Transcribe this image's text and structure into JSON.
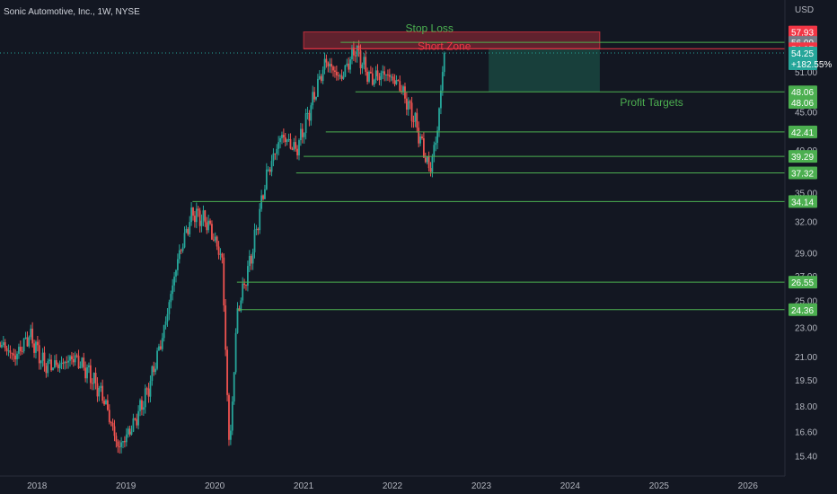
{
  "header": {
    "title": "Sonic Automotive, Inc., 1W, NYSE",
    "currency": "USD"
  },
  "colors": {
    "background": "#131722",
    "up_candle": "#26a69a",
    "down_candle": "#ef5350",
    "level_line": "#4caf50",
    "level_tag": "#4caf50",
    "stop_tag": "#f23645",
    "short_zone_fill": "#f23645",
    "profit_zone_fill": "#1b4d44",
    "last_price_tag": "#26a69a",
    "gray_tag": "#787b86",
    "annotation_green": "#4caf50",
    "annotation_red": "#f23645"
  },
  "chart_data": {
    "type": "candlestick",
    "title": "Sonic Automotive, Inc., 1W, NYSE",
    "y_unit": "USD",
    "y_scale": "log",
    "ylim": [
      14.5,
      64
    ],
    "xlim": [
      "2017-08",
      "2026-06"
    ],
    "x_ticks": [
      "2018",
      "2019",
      "2020",
      "2021",
      "2022",
      "2023",
      "2024",
      "2025",
      "2026"
    ],
    "y_ticks": [
      15.4,
      16.6,
      18.0,
      19.5,
      21.0,
      23.0,
      25.0,
      27.0,
      29.0,
      32.0,
      35.0,
      40.0,
      45.0,
      51.0
    ],
    "price_path": [
      [
        "2017-08",
        22.0
      ],
      [
        "2017-10",
        21.0
      ],
      [
        "2017-12",
        22.5
      ],
      [
        "2018-02",
        20.5
      ],
      [
        "2018-04",
        20.5
      ],
      [
        "2018-06",
        21.0
      ],
      [
        "2018-08",
        20.0
      ],
      [
        "2018-10",
        18.5
      ],
      [
        "2018-12",
        15.8
      ],
      [
        "2019-02",
        17.0
      ],
      [
        "2019-04",
        19.0
      ],
      [
        "2019-06",
        22.5
      ],
      [
        "2019-08",
        28.5
      ],
      [
        "2019-10",
        33.0
      ],
      [
        "2019-12",
        32.0
      ],
      [
        "2020-02",
        28.5
      ],
      [
        "2020-03",
        15.5
      ],
      [
        "2020-04",
        24.0
      ],
      [
        "2020-06",
        29.0
      ],
      [
        "2020-08",
        37.0
      ],
      [
        "2020-10",
        42.0
      ],
      [
        "2020-12",
        40.0
      ],
      [
        "2021-02",
        46.0
      ],
      [
        "2021-04",
        53.0
      ],
      [
        "2021-06",
        50.0
      ],
      [
        "2021-08",
        55.0
      ],
      [
        "2021-10",
        50.0
      ],
      [
        "2021-12",
        51.0
      ],
      [
        "2022-02",
        49.0
      ],
      [
        "2022-04",
        44.0
      ],
      [
        "2022-06",
        37.5
      ],
      [
        "2022-07",
        42.0
      ],
      [
        "2022-08",
        54.25
      ]
    ],
    "levels": [
      {
        "price": 56.09,
        "label": "56.09",
        "role": "stop"
      },
      {
        "price": 48.06,
        "label": "48.06",
        "role": "target"
      },
      {
        "price": 42.41,
        "label": "42.41",
        "role": "target"
      },
      {
        "price": 39.29,
        "label": "39.29",
        "role": "target"
      },
      {
        "price": 37.32,
        "label": "37.32",
        "role": "target"
      },
      {
        "price": 34.14,
        "label": "34.14",
        "role": "target"
      },
      {
        "price": 26.55,
        "label": "26.55",
        "role": "target"
      },
      {
        "price": 24.36,
        "label": "24.36",
        "role": "target"
      }
    ],
    "price_tags": [
      {
        "price": 57.93,
        "label": "57.93",
        "kind": "stop"
      },
      {
        "price": 56.09,
        "label": "56.09",
        "kind": "gray"
      },
      {
        "price": 54.97,
        "label": "54.97",
        "kind": "stop"
      },
      {
        "price": 54.25,
        "label": "54.25",
        "sub": "+182.55%",
        "kind": "last"
      },
      {
        "price": 48.06,
        "label": "48.06",
        "kind": "target"
      },
      {
        "price": 46.5,
        "label": "48.06",
        "kind": "target"
      },
      {
        "price": 42.41,
        "label": "42.41",
        "kind": "target"
      },
      {
        "price": 39.29,
        "label": "39.29",
        "kind": "target"
      },
      {
        "price": 37.32,
        "label": "37.32",
        "kind": "target"
      },
      {
        "price": 34.14,
        "label": "34.14",
        "kind": "target"
      },
      {
        "price": 26.55,
        "label": "26.55",
        "kind": "target"
      },
      {
        "price": 24.36,
        "label": "24.36",
        "kind": "target"
      }
    ],
    "last_price": 54.25,
    "last_change": "+182.55%",
    "short_zone": {
      "price_low": 54.97,
      "price_high": 57.93,
      "x_start": "2021-01",
      "x_end": "2024-05"
    },
    "profit_zone": {
      "price_low": 48.06,
      "price_high": 54.97,
      "x_start": "2023-02",
      "x_end": "2024-05"
    },
    "annotations": [
      {
        "text": "Stop Loss",
        "x": "2022-06",
        "price": 58.6,
        "color": "green"
      },
      {
        "text": "Short Zone",
        "x": "2022-08",
        "price": 55.4,
        "color": "red"
      },
      {
        "text": "Profit Targets",
        "x": "2024-12",
        "price": 46.5,
        "color": "green"
      }
    ]
  }
}
